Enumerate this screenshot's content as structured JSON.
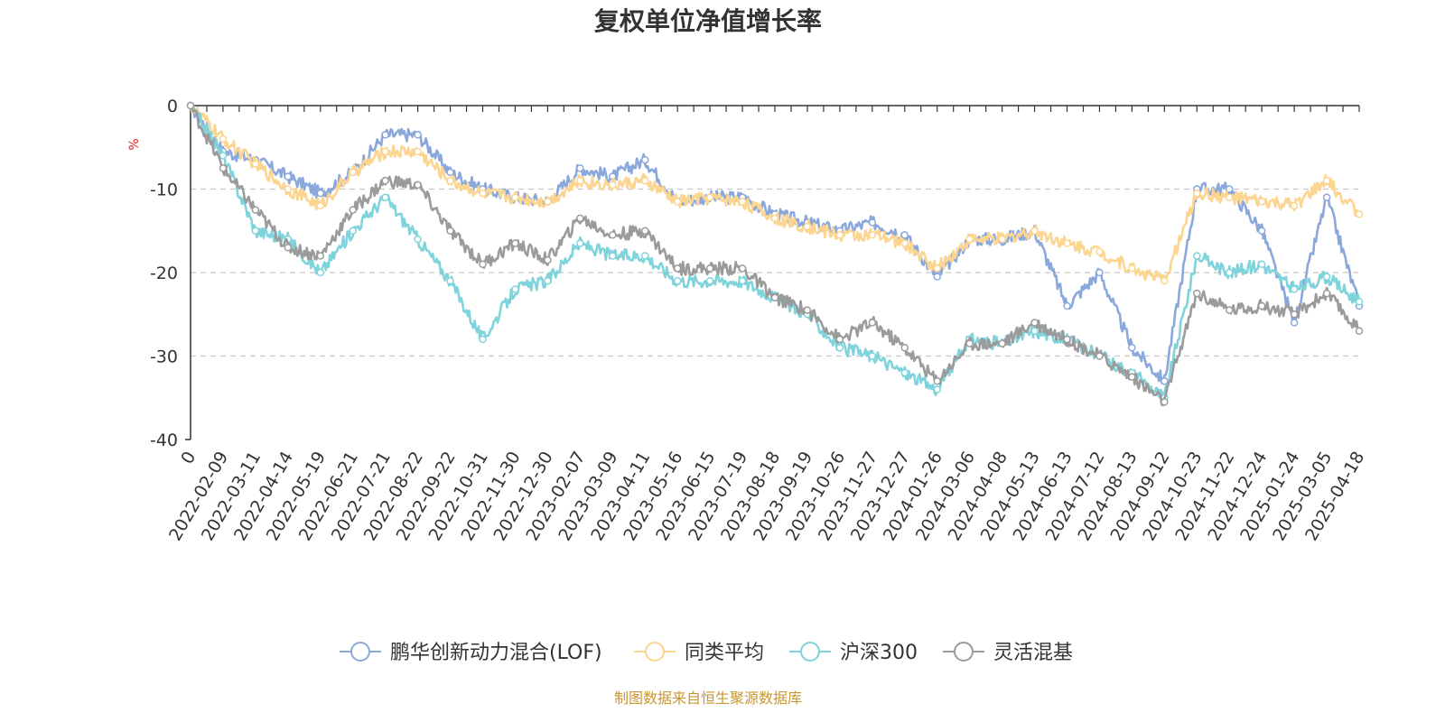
{
  "chart_data": {
    "type": "line",
    "title": "复权单位净值增长率",
    "ylabel": "%",
    "xlabel": "",
    "ylim": [
      -40,
      0
    ],
    "yticks": [
      0,
      -10,
      -20,
      -30,
      -40
    ],
    "grid": true,
    "legend_position": "bottom",
    "footer": "制图数据来自恒生聚源数据库",
    "x": [
      "0",
      "2022-02-09",
      "2022-03-11",
      "2022-04-14",
      "2022-05-19",
      "2022-06-21",
      "2022-07-21",
      "2022-08-22",
      "2022-09-22",
      "2022-10-31",
      "2022-11-30",
      "2022-12-30",
      "2023-02-07",
      "2023-03-09",
      "2023-04-11",
      "2023-05-16",
      "2023-06-15",
      "2023-07-19",
      "2023-08-18",
      "2023-09-19",
      "2023-10-26",
      "2023-11-27",
      "2023-12-27",
      "2024-01-26",
      "2024-03-06",
      "2024-04-08",
      "2024-05-13",
      "2024-06-13",
      "2024-07-12",
      "2024-08-13",
      "2024-09-12",
      "2024-10-23",
      "2024-11-22",
      "2024-12-24",
      "2025-01-24",
      "2025-03-05",
      "2025-04-18"
    ],
    "series": [
      {
        "name": "鹏华创新动力混合(LOF)",
        "color": "#8aa8dc",
        "values": [
          0,
          -5.5,
          -6.5,
          -8.5,
          -10.5,
          -8,
          -3.5,
          -3.5,
          -8,
          -10,
          -11,
          -11.5,
          -7.5,
          -8.5,
          -6.5,
          -11.5,
          -11,
          -11,
          -13,
          -14,
          -15,
          -14,
          -15.5,
          -20.5,
          -16,
          -16,
          -15,
          -24,
          -20,
          -29,
          -33,
          -10,
          -10,
          -15,
          -26,
          -11,
          -24
        ]
      },
      {
        "name": "同类平均",
        "color": "#fcd590",
        "values": [
          0,
          -4,
          -7,
          -10,
          -12,
          -8,
          -5.5,
          -5.5,
          -9,
          -10.5,
          -11,
          -11.5,
          -9,
          -9.5,
          -9,
          -11.5,
          -11,
          -11.5,
          -13.5,
          -14.5,
          -15.5,
          -15.5,
          -16.5,
          -19.5,
          -16,
          -16,
          -15,
          -16.5,
          -17.5,
          -19.5,
          -21,
          -10.5,
          -11,
          -11.5,
          -12,
          -9,
          -13
        ]
      },
      {
        "name": "沪深300",
        "color": "#7fd4dc",
        "values": [
          0,
          -6,
          -15,
          -16,
          -20,
          -15,
          -11,
          -16,
          -21,
          -28,
          -22,
          -21,
          -16.5,
          -18,
          -18,
          -21,
          -21,
          -21,
          -23,
          -25,
          -29,
          -30,
          -32,
          -34,
          -28,
          -28.5,
          -27,
          -28,
          -30,
          -32,
          -35,
          -18,
          -20,
          -19,
          -22,
          -20.5,
          -23.5
        ]
      },
      {
        "name": "灵活混基",
        "color": "#9b9b9b",
        "values": [
          0,
          -7.5,
          -12.5,
          -17,
          -18,
          -12.5,
          -9,
          -9.5,
          -15,
          -19,
          -16.5,
          -18.5,
          -13.5,
          -15.5,
          -15,
          -19.5,
          -19.5,
          -19.5,
          -23,
          -24.5,
          -28,
          -26,
          -29,
          -33,
          -28.5,
          -28.5,
          -26,
          -28,
          -30,
          -32.5,
          -35.5,
          -22.5,
          -24.5,
          -24,
          -25,
          -22.5,
          -27
        ]
      }
    ]
  }
}
